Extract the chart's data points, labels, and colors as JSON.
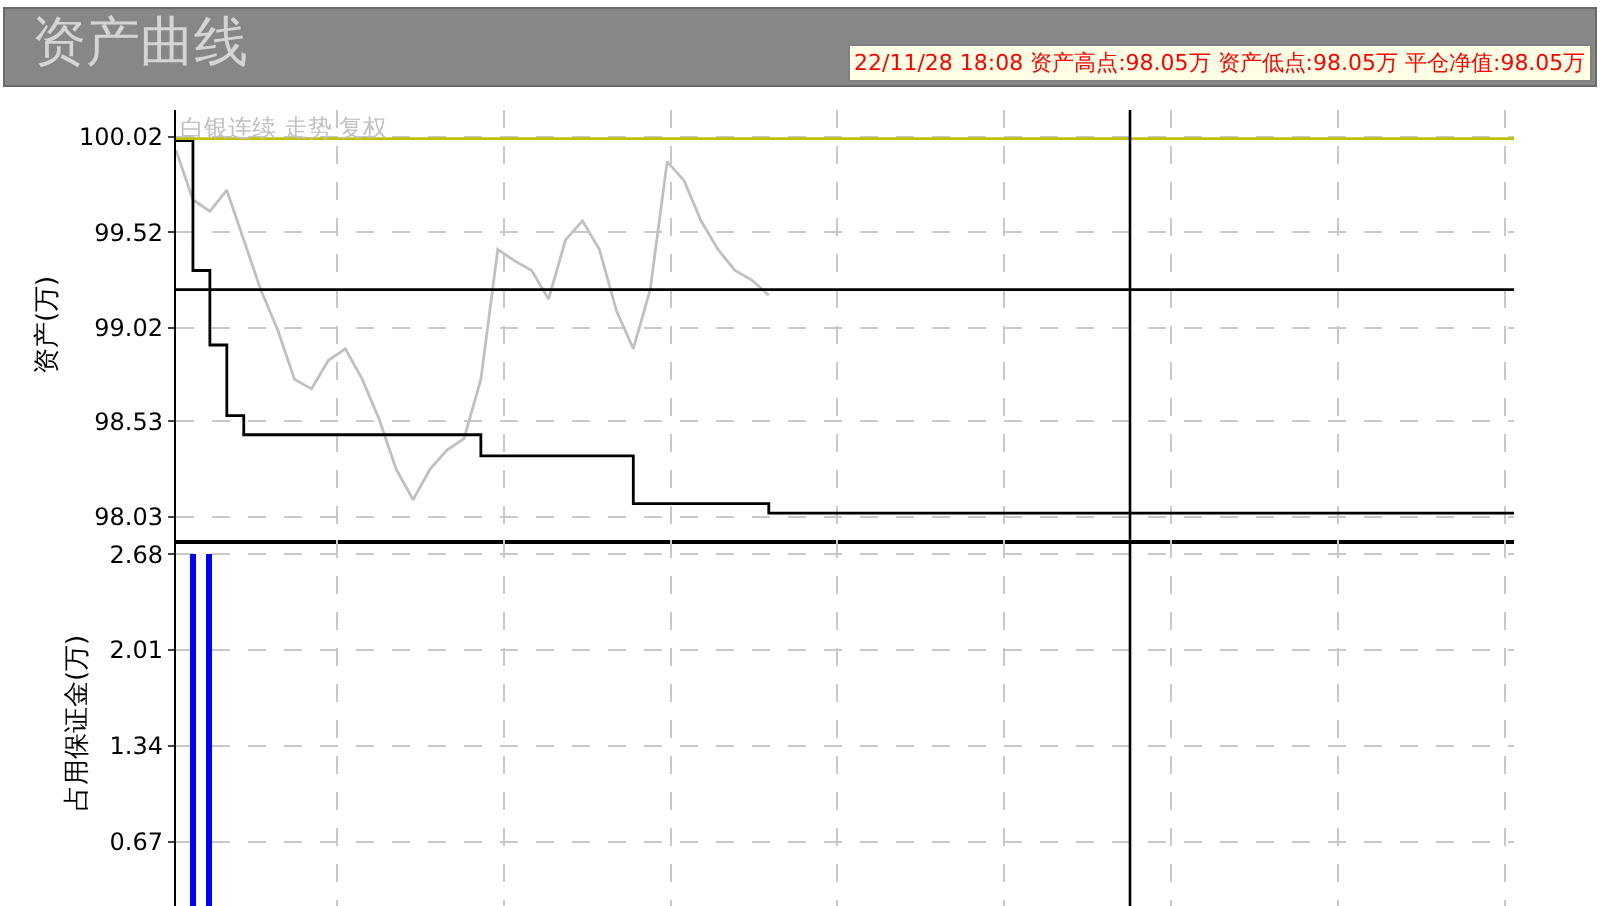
{
  "chart_data": [
    {
      "type": "step",
      "title": "资产曲线",
      "ylabel": "资产(万)",
      "grid": true,
      "tick_labels": "y",
      "legend": false,
      "annotations": [
        "22/11/28 18:08 资产高点:98.05万 资产低点:98.05万 平仓净值:98.05万"
      ],
      "categories": [
        null,
        null,
        null,
        null,
        null,
        null,
        null,
        null,
        null,
        null,
        null,
        null,
        null,
        null,
        null,
        null,
        null,
        null,
        null,
        null,
        null,
        null,
        null,
        null,
        null,
        null,
        null,
        null,
        null,
        null,
        null,
        null,
        null,
        null,
        null,
        null,
        null,
        null,
        null,
        null,
        null,
        null,
        null,
        null,
        null,
        null,
        null,
        null,
        null,
        null,
        null,
        null,
        null,
        null,
        null,
        null,
        null,
        null,
        null,
        null,
        null,
        null,
        null,
        null,
        null,
        null,
        null,
        null,
        null,
        null,
        null,
        null,
        null,
        null,
        null,
        null,
        null,
        null,
        null,
        null
      ],
      "ylim": [
        97.91,
        100.16
      ],
      "yticks": [
        98.03,
        98.53,
        99.02,
        99.52,
        100.02
      ],
      "ref_lines": [
        {
          "axis": "y",
          "value": 100.01,
          "color": "#c0c000"
        },
        {
          "axis": "y",
          "value": 99.22,
          "color": "#000000"
        }
      ],
      "series": [
        {
          "color": "#c0c0c0",
          "type": "line",
          "name": "白银连续 走势 复权",
          "values": [
            99.95,
            99.69,
            99.63,
            99.74,
            99.48,
            99.22,
            99.01,
            98.75,
            98.7,
            98.85,
            98.91,
            98.75,
            98.54,
            98.28,
            98.12,
            98.28,
            98.38,
            98.44,
            98.75,
            99.43,
            99.37,
            99.32,
            99.17,
            99.48,
            99.58,
            99.43,
            99.11,
            98.91,
            99.22,
            99.89,
            99.79,
            99.58,
            99.43,
            99.32,
            99.27,
            99.19,
            null,
            null,
            null,
            null,
            null,
            null,
            null,
            null,
            null,
            null,
            null,
            null,
            null,
            null,
            null,
            null,
            null,
            null,
            null,
            null,
            null,
            null,
            null,
            null,
            null,
            null,
            null,
            null,
            null,
            null,
            null,
            null,
            null,
            null,
            null,
            null,
            null,
            null,
            null,
            null,
            null,
            null,
            null,
            null
          ]
        },
        {
          "color": "#000000",
          "values": [
            100.0,
            99.32,
            98.93,
            98.56,
            98.46,
            98.46,
            98.46,
            98.46,
            98.46,
            98.46,
            98.46,
            98.46,
            98.46,
            98.46,
            98.46,
            98.46,
            98.46,
            98.46,
            98.35,
            98.35,
            98.35,
            98.35,
            98.35,
            98.35,
            98.35,
            98.35,
            98.35,
            98.1,
            98.1,
            98.1,
            98.1,
            98.1,
            98.1,
            98.1,
            98.1,
            98.05,
            98.05,
            98.05,
            98.05,
            98.05,
            98.05,
            98.05,
            98.05,
            98.05,
            98.05,
            98.05,
            98.05,
            98.05,
            98.05,
            98.05,
            98.05,
            98.05,
            98.05,
            98.05,
            98.05,
            98.05,
            98.05,
            98.05,
            98.05,
            98.05,
            98.05,
            98.05,
            98.05,
            98.05,
            98.05,
            98.05,
            98.05,
            98.05,
            98.05,
            98.05,
            98.05,
            98.05,
            98.05,
            98.05,
            98.05,
            98.05,
            98.05,
            98.05,
            98.05,
            98.05
          ]
        }
      ]
    },
    {
      "type": "bar",
      "ylabel": "占用保证金(万)",
      "grid": true,
      "tick_labels": "y",
      "color": "#0000ff",
      "categories": [
        null,
        null,
        null,
        null,
        null,
        null,
        null,
        null,
        null,
        null,
        null,
        null,
        null,
        null,
        null,
        null,
        null,
        null,
        null,
        null,
        null,
        null,
        null,
        null,
        null,
        null,
        null,
        null,
        null,
        null,
        null,
        null,
        null,
        null,
        null,
        null,
        null,
        null,
        null,
        null,
        null,
        null,
        null,
        null,
        null,
        null,
        null,
        null,
        null,
        null,
        null,
        null,
        null,
        null,
        null,
        null,
        null,
        null,
        null,
        null,
        null,
        null,
        null,
        null,
        null,
        null,
        null,
        null,
        null,
        null,
        null,
        null,
        null,
        null,
        null,
        null,
        null,
        null,
        null,
        null
      ],
      "values": [
        null,
        2.68,
        2.68,
        null,
        null,
        null,
        null,
        null,
        null,
        null,
        null,
        null,
        null,
        null,
        null,
        null,
        null,
        null,
        null,
        null,
        null,
        null,
        null,
        null,
        null,
        null,
        null,
        null,
        null,
        null,
        null,
        null,
        null,
        null,
        null,
        null,
        null,
        null,
        null,
        null,
        null,
        null,
        null,
        null,
        null,
        null,
        null,
        null,
        null,
        null,
        null,
        null,
        null,
        null,
        null,
        null,
        null,
        null,
        null,
        null,
        null,
        null,
        null,
        null,
        null,
        null,
        null,
        null,
        null,
        null,
        null,
        null,
        null,
        null,
        null,
        null,
        null,
        null,
        null,
        null
      ],
      "ylim": [
        0.22,
        2.78
      ],
      "yticks": [
        0.67,
        1.34,
        2.01,
        2.68
      ]
    }
  ]
}
